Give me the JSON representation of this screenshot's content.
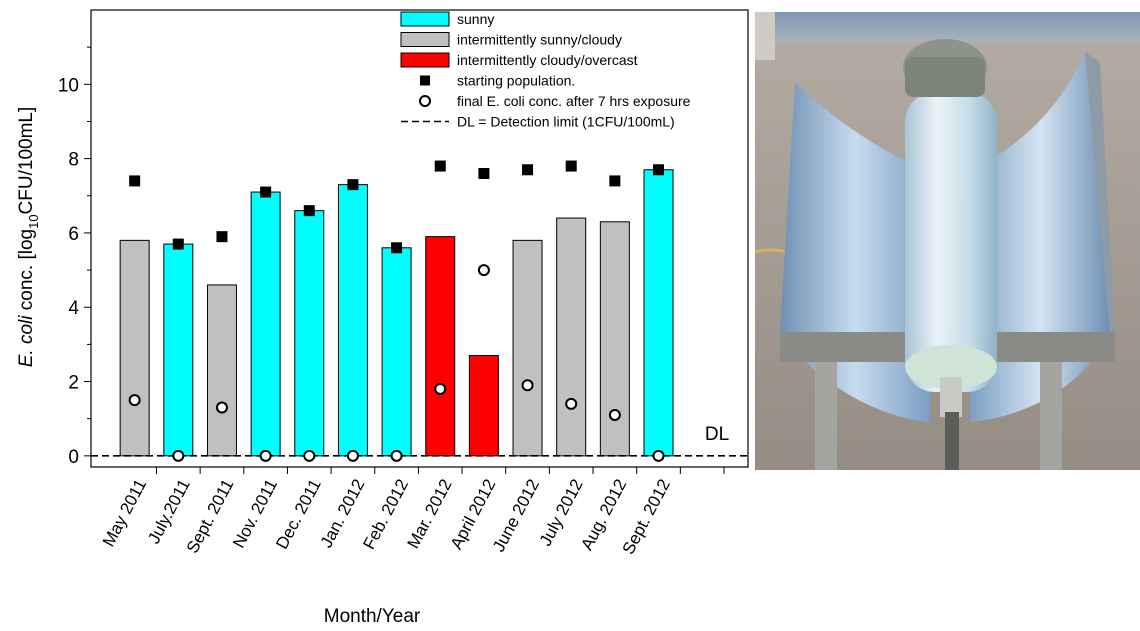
{
  "chart_data": {
    "type": "bar",
    "xlabel": "Month/Year",
    "ylabel": {
      "italic": "E. coli",
      "pre": " conc. [log",
      "sub": "10",
      "post": "CFU/100mL]"
    },
    "ylim": [
      -0.3,
      12
    ],
    "yticks": [
      0,
      2,
      4,
      6,
      8,
      10
    ],
    "categories": [
      "May 2011",
      "July.2011",
      "Sept. 2011",
      "Nov. 2011",
      "Dec. 2011",
      "Jan. 2012",
      "Feb. 2012",
      "Mar. 2012",
      "April 2012",
      "June 2012",
      "July 2012",
      "Aug. 2012",
      "Sept. 2012"
    ],
    "weather": [
      "intermittently sunny/cloudy",
      "sunny",
      "intermittently sunny/cloudy",
      "sunny",
      "sunny",
      "sunny",
      "sunny",
      "intermittently cloudy/overcast",
      "intermittently cloudy/overcast",
      "intermittently sunny/cloudy",
      "intermittently sunny/cloudy",
      "intermittently sunny/cloudy",
      "sunny"
    ],
    "bar_values": [
      5.8,
      5.7,
      4.6,
      7.1,
      6.6,
      7.3,
      5.6,
      5.9,
      2.7,
      5.8,
      6.4,
      6.3,
      7.7
    ],
    "series": [
      {
        "name": "starting population.",
        "values": [
          7.4,
          5.7,
          5.9,
          7.1,
          6.6,
          7.3,
          5.6,
          7.8,
          7.6,
          7.7,
          7.8,
          7.4,
          7.7
        ]
      },
      {
        "name": "final E. coli conc. after 7 hrs exposure",
        "values": [
          1.5,
          0,
          1.3,
          0,
          0,
          0,
          0,
          1.8,
          5.0,
          1.9,
          1.4,
          1.1,
          0
        ]
      }
    ],
    "detection_limit": 0,
    "dl_label": "DL",
    "colors": {
      "sunny": "#00ffff",
      "intermittently sunny/cloudy": "#c0c0c0",
      "intermittently cloudy/overcast": "#ff0000"
    },
    "legend": {
      "placement": "top-right",
      "items": [
        {
          "label": "sunny",
          "symbol": "bar",
          "color": "#00ffff"
        },
        {
          "label": "intermittently sunny/cloudy",
          "symbol": "bar",
          "color": "#c0c0c0"
        },
        {
          "label": "intermittently cloudy/overcast",
          "symbol": "bar",
          "color": "#ff0000"
        },
        {
          "label": "starting population.",
          "symbol": "filled-square"
        },
        {
          "label": "final E. coli conc. after 7 hrs exposure",
          "symbol": "open-circle"
        },
        {
          "label": "DL = Detection limit (1CFU/100mL)",
          "symbol": "dashed-line"
        }
      ]
    },
    "grid": false
  },
  "photo": {
    "subject": "solar-disinfection-reactor-icon",
    "colors": {
      "sky": "#8aa0b8",
      "ground": "#a59d95",
      "mirror": "#b9d3e8",
      "tube": "#dbeef6",
      "metal": "#9a9a96"
    }
  }
}
